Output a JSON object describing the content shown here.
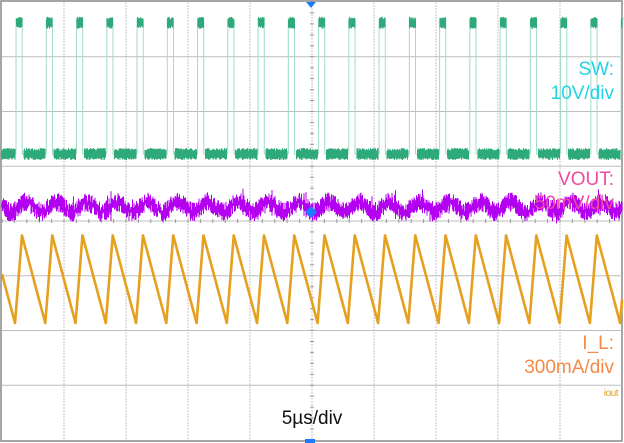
{
  "timebase": {
    "label": "5µs/div",
    "us_per_div": 5,
    "divisions": 10
  },
  "vertical_divisions": 8,
  "channels": [
    {
      "id": "sw",
      "label_line1": "SW:",
      "label_line2": "10V/div",
      "label_color": "#22D3E6",
      "trace_color": "#2EAA7A",
      "units_per_div": 10,
      "unit": "V"
    },
    {
      "id": "vout",
      "label_line1": "VOUT:",
      "label_line2": "50mV/div",
      "label_color": "#F04AA0",
      "trace_color": "#B300F0",
      "units_per_div": 50,
      "unit": "mV"
    },
    {
      "id": "il",
      "label_line1": "I_L:",
      "label_line2": "300mA/div",
      "label_color": "#F58A45",
      "trace_color": "#E6A020",
      "units_per_div": 300,
      "unit": "mA",
      "tag": "iout",
      "tag_color": "#E0A020"
    }
  ],
  "chart_data": {
    "type": "line",
    "xlabel": "5µs/div",
    "xlim_us": [
      0,
      50
    ],
    "grid": true,
    "series": [
      {
        "name": "SW",
        "shape": "square",
        "period_us": 2.44,
        "first_rise_us": 1.13,
        "on_time_us": 0.5,
        "high_V": 24.7,
        "low_V": 0
      },
      {
        "name": "VOUT",
        "shape": "noisy-ripple",
        "period_us": 2.44,
        "ripple_mV": 9,
        "noise_pp_mV": 18
      },
      {
        "name": "I_L",
        "shape": "sawtooth",
        "period_us": 2.44,
        "first_valley_us": 1.05,
        "rise_time_us": 0.56,
        "ripple_pp_mA": 480
      }
    ]
  }
}
